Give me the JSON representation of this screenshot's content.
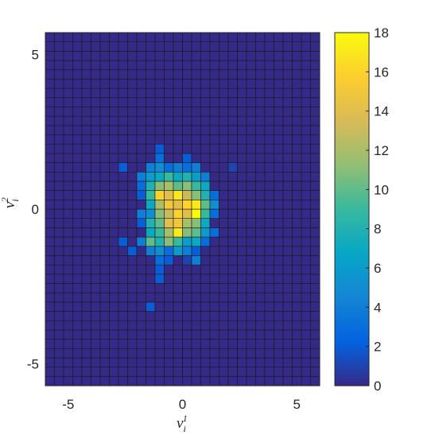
{
  "chart_data": {
    "type": "histogram2d",
    "xlabel": {
      "base": "v",
      "sub": "i",
      "sup": "1"
    },
    "ylabel": {
      "base": "v",
      "sub": "i",
      "sup": "2"
    },
    "xlim": [
      -6,
      6
    ],
    "ylim": [
      -5.7,
      5.7
    ],
    "xticks": [
      -5,
      0,
      5
    ],
    "yticks": [
      -5,
      0,
      5
    ],
    "clim": [
      0,
      18
    ],
    "cticks": [
      0,
      2,
      4,
      6,
      8,
      10,
      12,
      14,
      16,
      18
    ],
    "colormap": [
      "#352a87",
      "#0363e1",
      "#1485d4",
      "#06a7c6",
      "#38b99e",
      "#92bf73",
      "#d9ba56",
      "#fcce2e",
      "#f9fb0e"
    ],
    "xbins": [
      -6,
      -5.6,
      -5.2,
      -4.8,
      -4.4,
      -4,
      -3.6,
      -3.2,
      -2.8,
      -2.4,
      -2,
      -1.6,
      -1.2,
      -0.8,
      -0.4,
      0,
      0.4,
      0.8,
      1.2,
      1.6,
      2,
      2.4,
      2.8,
      3.2,
      3.6,
      4,
      4.4,
      4.8,
      5.2,
      5.6,
      6
    ],
    "ybins": [
      -5.7,
      -5.4,
      -5.1,
      -4.8,
      -4.5,
      -4.2,
      -3.9,
      -3.6,
      -3.3,
      -3,
      -2.7,
      -2.4,
      -2.1,
      -1.8,
      -1.5,
      -1.2,
      -0.9,
      -0.6,
      -0.3,
      0,
      0.3,
      0.6,
      0.9,
      1.2,
      1.5,
      1.8,
      2.1,
      2.4,
      2.7,
      3,
      3.3,
      3.6,
      3.9,
      4.2,
      4.5,
      4.8,
      5.1,
      5.4,
      5.7
    ],
    "z": [
      [
        0,
        0,
        0,
        0,
        0,
        0,
        0,
        0,
        0,
        0,
        0,
        0,
        0,
        0,
        0,
        0,
        0,
        0,
        0,
        0,
        0,
        0,
        0,
        0,
        0,
        0,
        0,
        0,
        0,
        0
      ],
      [
        0,
        0,
        0,
        0,
        0,
        0,
        0,
        0,
        0,
        0,
        0,
        0,
        0,
        0,
        0,
        0,
        0,
        0,
        0,
        0,
        0,
        0,
        0,
        0,
        0,
        0,
        0,
        0,
        0,
        0
      ],
      [
        0,
        0,
        0,
        0,
        0,
        0,
        0,
        0,
        0,
        0,
        0,
        0,
        0,
        0,
        0,
        0,
        0,
        0,
        0,
        0,
        0,
        0,
        0,
        0,
        0,
        0,
        0,
        0,
        0,
        0
      ],
      [
        0,
        0,
        0,
        0,
        0,
        0,
        0,
        0,
        0,
        0,
        0,
        0,
        0,
        0,
        0,
        0,
        0,
        0,
        0,
        0,
        0,
        0,
        0,
        0,
        0,
        0,
        0,
        0,
        0,
        0
      ],
      [
        0,
        0,
        0,
        0,
        0,
        0,
        0,
        0,
        0,
        0,
        0,
        0,
        0,
        0,
        0,
        0,
        0,
        0,
        0,
        0,
        0,
        0,
        0,
        0,
        0,
        0,
        0,
        0,
        0,
        0
      ],
      [
        0,
        0,
        0,
        0,
        0,
        0,
        0,
        0,
        0,
        0,
        0,
        0,
        0,
        0,
        0,
        0,
        0,
        0,
        0,
        0,
        0,
        0,
        0,
        0,
        0,
        0,
        0,
        0,
        0,
        0
      ],
      [
        0,
        0,
        0,
        0,
        0,
        0,
        0,
        0,
        0,
        0,
        0,
        0,
        0,
        0,
        0,
        0,
        0,
        0,
        0,
        0,
        0,
        0,
        0,
        0,
        0,
        0,
        0,
        0,
        0,
        0
      ],
      [
        0,
        0,
        0,
        0,
        0,
        0,
        0,
        0,
        0,
        0,
        0,
        0,
        0,
        0,
        0,
        0,
        0,
        0,
        0,
        0,
        0,
        0,
        0,
        0,
        0,
        0,
        0,
        0,
        0,
        0
      ],
      [
        0,
        0,
        0,
        0,
        0,
        0,
        0,
        0,
        0,
        0,
        0,
        2,
        0,
        0,
        0,
        0,
        0,
        0,
        0,
        0,
        0,
        0,
        0,
        0,
        0,
        0,
        0,
        0,
        0,
        0
      ],
      [
        0,
        0,
        0,
        0,
        0,
        0,
        0,
        0,
        0,
        0,
        0,
        0,
        0,
        0,
        0,
        0,
        0,
        0,
        0,
        0,
        0,
        0,
        0,
        0,
        0,
        0,
        0,
        0,
        0,
        0
      ],
      [
        0,
        0,
        0,
        0,
        0,
        0,
        0,
        0,
        0,
        0,
        0,
        0,
        0,
        0,
        0,
        0,
        0,
        0,
        0,
        0,
        0,
        0,
        0,
        0,
        0,
        0,
        0,
        0,
        0,
        0
      ],
      [
        0,
        0,
        0,
        0,
        0,
        0,
        0,
        0,
        0,
        0,
        0,
        0,
        2,
        0,
        0,
        0,
        0,
        0,
        0,
        0,
        0,
        0,
        0,
        0,
        0,
        0,
        0,
        0,
        0,
        0
      ],
      [
        0,
        0,
        0,
        0,
        0,
        0,
        0,
        0,
        0,
        0,
        0,
        0,
        2,
        0,
        0,
        0,
        0,
        0,
        0,
        0,
        0,
        0,
        0,
        0,
        0,
        0,
        0,
        0,
        0,
        0
      ],
      [
        0,
        0,
        0,
        0,
        0,
        0,
        0,
        0,
        0,
        0,
        0,
        0,
        3,
        2,
        0,
        1,
        4,
        0,
        0,
        0,
        0,
        0,
        0,
        0,
        0,
        0,
        0,
        0,
        0,
        0
      ],
      [
        0,
        0,
        0,
        0,
        0,
        0,
        0,
        0,
        0,
        2,
        0,
        4,
        5,
        3,
        6,
        4,
        2,
        0,
        0,
        0,
        0,
        0,
        0,
        0,
        0,
        0,
        0,
        0,
        0,
        0
      ],
      [
        0,
        0,
        0,
        0,
        0,
        0,
        0,
        0,
        2,
        0,
        4,
        10,
        8,
        11,
        9,
        6,
        7,
        3,
        0,
        0,
        0,
        0,
        0,
        0,
        0,
        0,
        0,
        0,
        0,
        0
      ],
      [
        0,
        0,
        0,
        0,
        0,
        0,
        0,
        0,
        0,
        0,
        0,
        7,
        9,
        12,
        17,
        11,
        10,
        6,
        3,
        0,
        0,
        0,
        0,
        0,
        0,
        0,
        0,
        0,
        0,
        0
      ],
      [
        0,
        0,
        0,
        0,
        0,
        0,
        0,
        0,
        0,
        0,
        2,
        8,
        10,
        14,
        15,
        12,
        11,
        7,
        0,
        0,
        0,
        0,
        0,
        0,
        0,
        0,
        0,
        0,
        0,
        0
      ],
      [
        0,
        0,
        0,
        0,
        0,
        0,
        0,
        0,
        0,
        0,
        4,
        5,
        11,
        13,
        16,
        14,
        18,
        9,
        3,
        0,
        0,
        0,
        0,
        0,
        0,
        0,
        0,
        0,
        0,
        0
      ],
      [
        0,
        0,
        0,
        0,
        0,
        0,
        0,
        0,
        0,
        0,
        0,
        7,
        12,
        15,
        14,
        16,
        17,
        10,
        5,
        0,
        0,
        0,
        0,
        0,
        0,
        0,
        0,
        0,
        0,
        0
      ],
      [
        0,
        0,
        0,
        0,
        0,
        0,
        0,
        0,
        0,
        0,
        2,
        9,
        16,
        14,
        17,
        13,
        11,
        8,
        3,
        0,
        0,
        0,
        0,
        0,
        0,
        0,
        0,
        0,
        0,
        0
      ],
      [
        0,
        0,
        0,
        0,
        0,
        0,
        0,
        0,
        0,
        0,
        3,
        8,
        11,
        12,
        10,
        11,
        9,
        7,
        0,
        0,
        0,
        0,
        0,
        0,
        0,
        0,
        0,
        0,
        0,
        0
      ],
      [
        0,
        0,
        0,
        0,
        0,
        0,
        0,
        0,
        0,
        0,
        4,
        6,
        7,
        9,
        7,
        8,
        6,
        4,
        0,
        0,
        0,
        0,
        0,
        0,
        0,
        0,
        0,
        0,
        0,
        0
      ],
      [
        0,
        0,
        0,
        0,
        0,
        0,
        0,
        0,
        2,
        0,
        0,
        4,
        5,
        3,
        4,
        3,
        4,
        0,
        0,
        0,
        1,
        0,
        0,
        0,
        0,
        0,
        0,
        0,
        0,
        0
      ],
      [
        0,
        0,
        0,
        0,
        0,
        0,
        0,
        0,
        0,
        0,
        0,
        0,
        3,
        0,
        0,
        2,
        0,
        0,
        0,
        0,
        0,
        0,
        0,
        0,
        0,
        0,
        0,
        0,
        0,
        0
      ],
      [
        0,
        0,
        0,
        0,
        0,
        0,
        0,
        0,
        0,
        0,
        0,
        0,
        2,
        0,
        0,
        0,
        0,
        0,
        0,
        0,
        0,
        0,
        0,
        0,
        0,
        0,
        0,
        0,
        0,
        0
      ],
      [
        0,
        0,
        0,
        0,
        0,
        0,
        0,
        0,
        0,
        0,
        0,
        0,
        0,
        0,
        0,
        0,
        0,
        0,
        0,
        0,
        0,
        0,
        0,
        0,
        0,
        0,
        0,
        0,
        0,
        0
      ],
      [
        0,
        0,
        0,
        0,
        0,
        0,
        0,
        0,
        0,
        0,
        0,
        0,
        0,
        0,
        0,
        0,
        0,
        0,
        0,
        0,
        0,
        0,
        0,
        0,
        0,
        0,
        0,
        0,
        0,
        0
      ],
      [
        0,
        0,
        0,
        0,
        0,
        0,
        0,
        0,
        0,
        0,
        0,
        0,
        0,
        0,
        0,
        0,
        0,
        0,
        0,
        0,
        0,
        0,
        0,
        0,
        0,
        0,
        0,
        0,
        0,
        0
      ],
      [
        0,
        0,
        0,
        0,
        0,
        0,
        0,
        0,
        0,
        0,
        0,
        0,
        0,
        0,
        0,
        0,
        0,
        0,
        0,
        0,
        0,
        0,
        0,
        0,
        0,
        0,
        0,
        0,
        0,
        0
      ],
      [
        0,
        0,
        0,
        0,
        0,
        0,
        0,
        0,
        0,
        0,
        0,
        0,
        0,
        0,
        0,
        0,
        0,
        0,
        0,
        0,
        0,
        0,
        0,
        0,
        0,
        0,
        0,
        0,
        0,
        0
      ],
      [
        0,
        0,
        0,
        0,
        0,
        0,
        0,
        0,
        0,
        0,
        0,
        0,
        0,
        0,
        0,
        0,
        0,
        0,
        0,
        0,
        0,
        0,
        0,
        0,
        0,
        0,
        0,
        0,
        0,
        0
      ],
      [
        0,
        0,
        0,
        0,
        0,
        0,
        0,
        0,
        0,
        0,
        0,
        0,
        0,
        0,
        0,
        0,
        0,
        0,
        0,
        0,
        0,
        0,
        0,
        0,
        0,
        0,
        0,
        0,
        0,
        0
      ],
      [
        0,
        0,
        0,
        0,
        0,
        0,
        0,
        0,
        0,
        0,
        0,
        0,
        0,
        0,
        0,
        0,
        0,
        0,
        0,
        0,
        0,
        0,
        0,
        0,
        0,
        0,
        0,
        0,
        0,
        0
      ],
      [
        0,
        0,
        0,
        0,
        0,
        0,
        0,
        0,
        0,
        0,
        0,
        0,
        0,
        0,
        0,
        0,
        0,
        0,
        0,
        0,
        0,
        0,
        0,
        0,
        0,
        0,
        0,
        0,
        0,
        0
      ],
      [
        0,
        0,
        0,
        0,
        0,
        0,
        0,
        0,
        0,
        0,
        0,
        0,
        0,
        0,
        0,
        0,
        0,
        0,
        0,
        0,
        0,
        0,
        0,
        0,
        0,
        0,
        0,
        0,
        0,
        0
      ],
      [
        0,
        0,
        0,
        0,
        0,
        0,
        0,
        0,
        0,
        0,
        0,
        0,
        0,
        0,
        0,
        0,
        0,
        0,
        0,
        0,
        0,
        0,
        0,
        0,
        0,
        0,
        0,
        0,
        0,
        0
      ],
      [
        0,
        0,
        0,
        0,
        0,
        0,
        0,
        0,
        0,
        0,
        0,
        0,
        0,
        0,
        0,
        0,
        0,
        0,
        0,
        0,
        0,
        0,
        0,
        0,
        0,
        0,
        0,
        0,
        0,
        0
      ]
    ]
  }
}
